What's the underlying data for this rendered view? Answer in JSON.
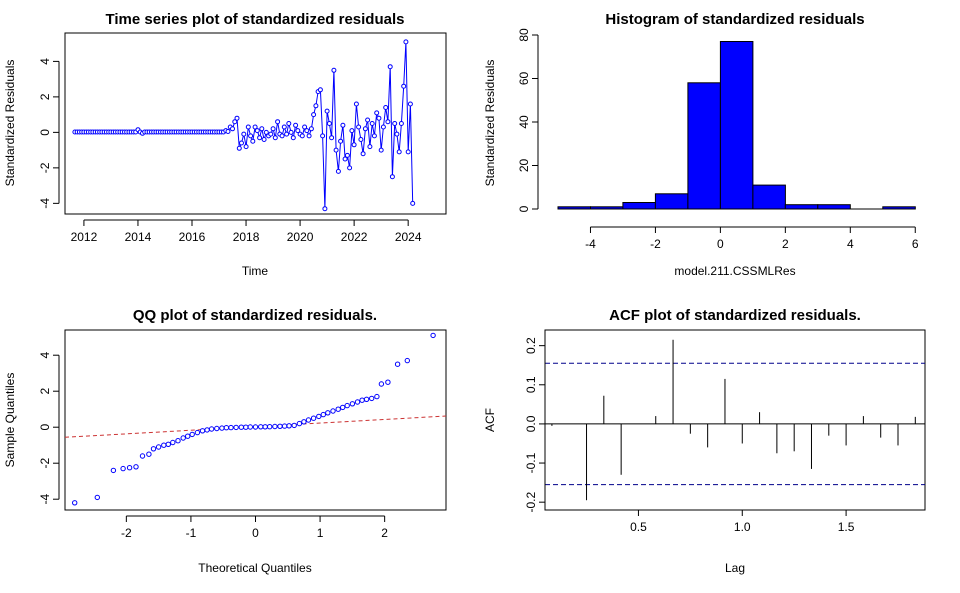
{
  "colors": {
    "points": "#0000ff",
    "bars": "#0000ff",
    "ref_line": "#cc3333",
    "conf_band": "#00008b",
    "frame": "#000000"
  },
  "chart_data": [
    {
      "id": "ts",
      "type": "line",
      "title": "Time series plot of standardized residuals",
      "xlabel": "Time",
      "ylabel": "Standardized Residuals",
      "xlim": [
        2011.3,
        2025.4
      ],
      "ylim": [
        -4.6,
        5.6
      ],
      "xticks": [
        2012,
        2014,
        2016,
        2018,
        2020,
        2022,
        2024
      ],
      "yticks": [
        -4,
        -2,
        0,
        2,
        4
      ],
      "start": 2011.667,
      "freq": 12,
      "values": [
        0.02,
        0.02,
        0.02,
        0.02,
        0.02,
        0.02,
        0.02,
        0.02,
        0.02,
        0.02,
        0.02,
        0.02,
        0.02,
        0.02,
        0.02,
        0.02,
        0.02,
        0.02,
        0.02,
        0.02,
        0.02,
        0.02,
        0.02,
        0.02,
        0.02,
        0.02,
        0.02,
        0.02,
        0.15,
        0.02,
        -0.05,
        0.02,
        0.02,
        0.02,
        0.02,
        0.02,
        0.02,
        0.02,
        0.02,
        0.02,
        0.02,
        0.02,
        0.02,
        0.02,
        0.02,
        0.02,
        0.02,
        0.02,
        0.02,
        0.02,
        0.02,
        0.02,
        0.02,
        0.02,
        0.02,
        0.02,
        0.02,
        0.02,
        0.02,
        0.02,
        0.02,
        0.02,
        0.02,
        0.02,
        0.02,
        0.02,
        0.02,
        0.1,
        0.05,
        0.3,
        0.2,
        0.6,
        0.8,
        -0.9,
        -0.6,
        -0.1,
        -0.8,
        0.3,
        -0.2,
        -0.5,
        0.3,
        0.1,
        -0.3,
        0.2,
        -0.4,
        0.0,
        -0.2,
        -0.1,
        0.2,
        -0.3,
        0.6,
        -0.1,
        -0.2,
        0.3,
        -0.1,
        0.5,
        0.0,
        -0.3,
        0.4,
        0.1,
        -0.1,
        -0.2,
        0.3,
        0.1,
        -0.2,
        0.2,
        1.0,
        1.5,
        2.3,
        2.4,
        -0.2,
        -4.3,
        1.2,
        0.5,
        -0.3,
        3.5,
        -1.0,
        -2.2,
        -0.5,
        0.4,
        -1.5,
        -1.3,
        -2.0,
        0.1,
        -0.7,
        1.6,
        0.3,
        -0.4,
        -1.2,
        0.2,
        0.7,
        -0.8,
        0.5,
        -0.2,
        1.1,
        0.8,
        -1.0,
        0.3,
        1.4,
        0.6,
        3.7,
        -2.5,
        0.5,
        -0.1,
        -1.1,
        0.5,
        2.6,
        5.1,
        -1.1,
        1.6,
        -4.0
      ]
    },
    {
      "id": "hist",
      "type": "bar",
      "title": "Histogram of standardized residuals",
      "xlabel": "model.211.CSSMLRes",
      "ylabel": "Standardized Residuals",
      "xlim": [
        -5.4,
        6.3
      ],
      "ylim": [
        0,
        80
      ],
      "xticks": [
        -4,
        -2,
        0,
        2,
        4,
        6
      ],
      "yticks": [
        0,
        20,
        40,
        60,
        80
      ],
      "bins": [
        [
          -5,
          -4,
          1
        ],
        [
          -4,
          -3,
          1
        ],
        [
          -3,
          -2,
          3
        ],
        [
          -2,
          -1,
          7
        ],
        [
          -1,
          0,
          58
        ],
        [
          0,
          1,
          77
        ],
        [
          1,
          2,
          11
        ],
        [
          2,
          3,
          2
        ],
        [
          3,
          4,
          2
        ],
        [
          4,
          5,
          0
        ],
        [
          5,
          6,
          1
        ]
      ]
    },
    {
      "id": "qq",
      "type": "scatter",
      "title": "QQ plot of standardized residuals.",
      "xlabel": "Theoretical Quantiles",
      "ylabel": "Sample Quantiles",
      "xlim": [
        -2.95,
        2.95
      ],
      "ylim": [
        -4.6,
        5.4
      ],
      "xticks": [
        -2,
        -1,
        0,
        1,
        2
      ],
      "yticks": [
        -4,
        -2,
        0,
        2,
        4
      ],
      "ref_line": {
        "intercept": 0.03,
        "slope": 0.2
      },
      "points": [
        [
          -2.8,
          -4.2
        ],
        [
          -2.45,
          -3.9
        ],
        [
          -2.2,
          -2.4
        ],
        [
          -2.05,
          -2.3
        ],
        [
          -1.95,
          -2.25
        ],
        [
          -1.85,
          -2.2
        ],
        [
          -1.75,
          -1.6
        ],
        [
          -1.65,
          -1.5
        ],
        [
          -1.58,
          -1.2
        ],
        [
          -1.5,
          -1.1
        ],
        [
          -1.42,
          -1.0
        ],
        [
          -1.35,
          -0.95
        ],
        [
          -1.28,
          -0.85
        ],
        [
          -1.2,
          -0.75
        ],
        [
          -1.12,
          -0.6
        ],
        [
          -1.05,
          -0.5
        ],
        [
          -0.98,
          -0.4
        ],
        [
          -0.9,
          -0.3
        ],
        [
          -0.82,
          -0.2
        ],
        [
          -0.75,
          -0.15
        ],
        [
          -0.68,
          -0.1
        ],
        [
          -0.6,
          -0.07
        ],
        [
          -0.52,
          -0.05
        ],
        [
          -0.45,
          -0.03
        ],
        [
          -0.38,
          -0.02
        ],
        [
          -0.3,
          -0.01
        ],
        [
          -0.22,
          0.0
        ],
        [
          -0.15,
          0.0
        ],
        [
          -0.08,
          0.01
        ],
        [
          0.0,
          0.01
        ],
        [
          0.08,
          0.02
        ],
        [
          0.15,
          0.02
        ],
        [
          0.22,
          0.03
        ],
        [
          0.3,
          0.04
        ],
        [
          0.38,
          0.05
        ],
        [
          0.45,
          0.06
        ],
        [
          0.52,
          0.08
        ],
        [
          0.6,
          0.1
        ],
        [
          0.68,
          0.2
        ],
        [
          0.75,
          0.3
        ],
        [
          0.82,
          0.4
        ],
        [
          0.9,
          0.5
        ],
        [
          0.98,
          0.6
        ],
        [
          1.05,
          0.7
        ],
        [
          1.12,
          0.8
        ],
        [
          1.2,
          0.9
        ],
        [
          1.28,
          1.0
        ],
        [
          1.35,
          1.1
        ],
        [
          1.42,
          1.2
        ],
        [
          1.5,
          1.3
        ],
        [
          1.58,
          1.4
        ],
        [
          1.65,
          1.5
        ],
        [
          1.72,
          1.55
        ],
        [
          1.8,
          1.6
        ],
        [
          1.88,
          1.7
        ],
        [
          1.95,
          2.4
        ],
        [
          2.05,
          2.5
        ],
        [
          2.2,
          3.5
        ],
        [
          2.35,
          3.7
        ],
        [
          2.75,
          5.1
        ]
      ]
    },
    {
      "id": "acf",
      "type": "bar",
      "title": "ACF plot of standardized residuals.",
      "xlabel": "Lag",
      "ylabel": "ACF",
      "xlim": [
        0.05,
        1.88
      ],
      "ylim": [
        -0.22,
        0.24
      ],
      "xticks": [
        0.5,
        1.0,
        1.5
      ],
      "xtick_labels": [
        "0.5",
        "1.0",
        "1.5"
      ],
      "yticks": [
        -0.2,
        -0.1,
        0.0,
        0.1,
        0.2
      ],
      "ytick_labels": [
        "-0.2",
        "-0.1",
        "0.0",
        "0.1",
        "0.2"
      ],
      "conf_limit": 0.155,
      "lags": [
        0.0833,
        0.1667,
        0.25,
        0.3333,
        0.4167,
        0.5,
        0.5833,
        0.6667,
        0.75,
        0.8333,
        0.9167,
        1.0,
        1.0833,
        1.1667,
        1.25,
        1.3333,
        1.4167,
        1.5,
        1.5833,
        1.6667,
        1.75,
        1.8333
      ],
      "values": [
        -0.005,
        0.0,
        -0.195,
        0.072,
        -0.13,
        0.0,
        0.02,
        0.215,
        -0.025,
        -0.06,
        0.115,
        -0.05,
        0.03,
        -0.075,
        -0.07,
        -0.115,
        -0.03,
        -0.055,
        0.02,
        -0.035,
        -0.055,
        0.018
      ]
    }
  ]
}
